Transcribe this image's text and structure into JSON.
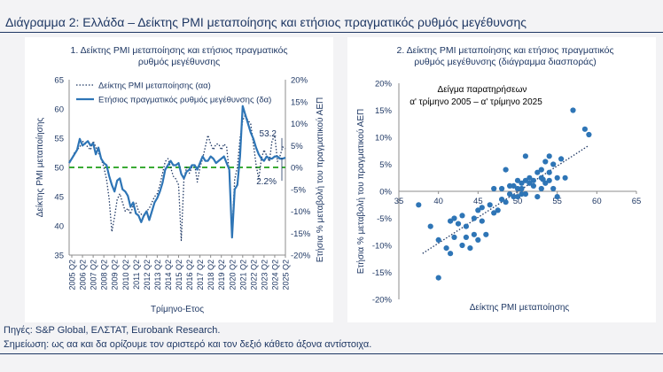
{
  "header": {
    "title": "Διάγραμμα 2: Ελλάδα – Δείκτης PMI μεταποίησης και ετήσιος πραγματικός ρυθμός μεγέθυνσης"
  },
  "footer": {
    "source": "Πηγές: S&P Global, ΕΛΣΤΑΤ, Eurobank Research.",
    "note": "Σημείωση: ως αα και δα ορίζουμε τον αριστερό και τον δεξιό κάθετο άξονα αντίστοιχα."
  },
  "colors": {
    "text": "#1f3864",
    "series_pmi": "#1f3864",
    "series_gdp": "#2e75b6",
    "threshold": "#3aaa35",
    "scatter": "#2e75b6"
  },
  "chart_data": [
    {
      "type": "line",
      "title_line1": "1. Δείκτης PMI μεταποίησης και ετήσιος πραγματικός",
      "title_line2": "ρυθμός μεγέθυνσης",
      "xlabel": "Τρίμηνο-Ετος",
      "ylabel_left": "Δείκτης PMI μεταποίησης",
      "ylabel_right": "Ετήσια % μεταβολή του πραγματικού ΑΕΠ",
      "ylim_left": [
        35,
        65
      ],
      "ylim_right": [
        -20,
        20
      ],
      "yticks_left": [
        "35",
        "40",
        "45",
        "50",
        "55",
        "60",
        "65"
      ],
      "yticks_right": [
        "-20%",
        "-15%",
        "-10%",
        "-5%",
        "0%",
        "5%",
        "10%",
        "15%",
        "20%"
      ],
      "x_ticks": [
        "2005 Q2",
        "2006 Q2",
        "2007 Q2",
        "2008 Q2",
        "2009 Q2",
        "2010 Q2",
        "2011 Q2",
        "2012 Q2",
        "2013 Q2",
        "2014 Q2",
        "2015 Q2",
        "2016 Q2",
        "2017 Q2",
        "2018 Q2",
        "2019 Q2",
        "2020 Q2",
        "2021 Q2",
        "2022 Q2",
        "2023 Q2",
        "2024 Q2",
        "2025 Q2"
      ],
      "x_start": 2005.0,
      "x_end": 2025.25,
      "threshold": 50,
      "legend_position": "top-left",
      "annotations": [
        {
          "text": "53.2",
          "x": 2025.25,
          "y_axis": "left",
          "y": 53.2
        },
        {
          "text": "2.2%",
          "x": 2025.25,
          "y_axis": "right",
          "y": 2.2
        }
      ],
      "series": [
        {
          "name": "Δείκτης PMI μεταποίησης (αα)",
          "axis": "left",
          "style": "dotted",
          "x": [
            2005.0,
            2005.25,
            2005.5,
            2005.75,
            2006.0,
            2006.25,
            2006.5,
            2006.75,
            2007.0,
            2007.25,
            2007.5,
            2007.75,
            2008.0,
            2008.25,
            2008.5,
            2008.75,
            2009.0,
            2009.25,
            2009.5,
            2009.75,
            2010.0,
            2010.25,
            2010.5,
            2010.75,
            2011.0,
            2011.25,
            2011.5,
            2011.75,
            2012.0,
            2012.25,
            2012.5,
            2012.75,
            2013.0,
            2013.25,
            2013.5,
            2013.75,
            2014.0,
            2014.25,
            2014.5,
            2014.75,
            2015.0,
            2015.25,
            2015.5,
            2015.75,
            2016.0,
            2016.25,
            2016.5,
            2016.75,
            2017.0,
            2017.25,
            2017.5,
            2017.75,
            2018.0,
            2018.25,
            2018.5,
            2018.75,
            2019.0,
            2019.25,
            2019.5,
            2019.75,
            2020.0,
            2020.25,
            2020.5,
            2020.75,
            2021.0,
            2021.25,
            2021.5,
            2021.75,
            2022.0,
            2022.25,
            2022.5,
            2022.75,
            2023.0,
            2023.25,
            2023.5,
            2023.75,
            2024.0,
            2024.25,
            2024.5,
            2024.75,
            2025.0,
            2025.25
          ],
          "values": [
            51.0,
            51.5,
            52.5,
            53.0,
            53.5,
            54.5,
            54.0,
            53.5,
            53.0,
            54.5,
            53.5,
            52.5,
            51.5,
            50.0,
            48.0,
            44.5,
            39.0,
            41.5,
            44.5,
            45.5,
            44.0,
            42.5,
            43.0,
            42.0,
            43.5,
            44.0,
            42.5,
            42.0,
            41.5,
            42.5,
            43.0,
            44.0,
            45.0,
            45.5,
            47.0,
            49.0,
            51.0,
            51.5,
            50.0,
            48.5,
            48.0,
            47.0,
            37.5,
            48.0,
            50.0,
            49.0,
            50.0,
            50.5,
            47.5,
            50.0,
            51.5,
            53.5,
            55.5,
            54.0,
            53.0,
            54.0,
            54.0,
            53.0,
            54.0,
            53.5,
            49.0,
            39.0,
            48.0,
            50.0,
            55.0,
            58.0,
            59.0,
            58.0,
            57.5,
            54.0,
            50.5,
            48.0,
            51.5,
            53.0,
            52.0,
            51.0,
            54.5,
            55.5,
            51.0,
            52.0,
            53.5,
            53.2
          ]
        },
        {
          "name": "Ετήσιος πραγματικός ρυθμός μεγέθυνσης (δα)",
          "axis": "right",
          "style": "solid",
          "x": [
            2005.0,
            2005.25,
            2005.5,
            2005.75,
            2006.0,
            2006.25,
            2006.5,
            2006.75,
            2007.0,
            2007.25,
            2007.5,
            2007.75,
            2008.0,
            2008.25,
            2008.5,
            2008.75,
            2009.0,
            2009.25,
            2009.5,
            2009.75,
            2010.0,
            2010.25,
            2010.5,
            2010.75,
            2011.0,
            2011.25,
            2011.5,
            2011.75,
            2012.0,
            2012.25,
            2012.5,
            2012.75,
            2013.0,
            2013.25,
            2013.5,
            2013.75,
            2014.0,
            2014.25,
            2014.5,
            2014.75,
            2015.0,
            2015.25,
            2015.5,
            2015.75,
            2016.0,
            2016.25,
            2016.5,
            2016.75,
            2017.0,
            2017.25,
            2017.5,
            2017.75,
            2018.0,
            2018.25,
            2018.5,
            2018.75,
            2019.0,
            2019.25,
            2019.5,
            2019.75,
            2020.0,
            2020.25,
            2020.5,
            2020.75,
            2021.0,
            2021.25,
            2021.5,
            2021.75,
            2022.0,
            2022.25,
            2022.5,
            2022.75,
            2023.0,
            2023.25,
            2023.5,
            2023.75,
            2024.0,
            2024.25,
            2024.5,
            2024.75,
            2025.0,
            2025.25
          ],
          "values": [
            1.0,
            2.0,
            3.0,
            4.0,
            6.5,
            5.0,
            5.5,
            6.0,
            5.0,
            5.5,
            3.0,
            4.5,
            2.0,
            1.0,
            0.5,
            -2.0,
            -4.0,
            -5.5,
            -3.0,
            -2.5,
            -5.0,
            -5.5,
            -6.5,
            -9.0,
            -8.0,
            -10.5,
            -11.0,
            -12.5,
            -11.0,
            -10.0,
            -12.0,
            -10.0,
            -8.0,
            -7.0,
            -5.5,
            -3.5,
            -0.5,
            0.5,
            1.5,
            0.5,
            0.5,
            1.0,
            -1.5,
            -2.5,
            -1.0,
            -0.5,
            0.5,
            0.5,
            -0.5,
            1.0,
            2.5,
            1.5,
            1.5,
            2.5,
            2.0,
            1.0,
            1.5,
            2.0,
            2.5,
            1.0,
            -0.5,
            -16.0,
            -5.0,
            -4.0,
            2.5,
            14.0,
            12.0,
            10.0,
            8.0,
            6.5,
            4.5,
            3.0,
            2.0,
            1.5,
            2.5,
            2.0,
            2.0,
            2.5,
            2.5,
            2.0,
            2.0,
            2.2
          ]
        }
      ]
    },
    {
      "type": "scatter",
      "title_line1": "2. Δείκτης PMI μεταποίησης και ετήσιος πραγματικός",
      "title_line2": "ρυθμός μεγέθυνσης (διάγραμμα διασποράς)",
      "inset_line1": "Δείγμα παρατηρήσεων",
      "inset_line2": "α' τρίμηνο 2005 – α' τρίμηνο 2025",
      "xlabel": "Δείκτης PMI μεταποίησης",
      "ylabel": "Ετήσια % μεταβολή του πραγματικού ΑΕΠ",
      "xlim": [
        35,
        65
      ],
      "ylim": [
        -20,
        20
      ],
      "xticks": [
        "35",
        "40",
        "45",
        "50",
        "55",
        "60",
        "65"
      ],
      "yticks": [
        "-20%",
        "-15%",
        "-10%",
        "-5%",
        "0%",
        "5%",
        "10%",
        "15%",
        "20%"
      ],
      "trendline": {
        "x": [
          38,
          59
        ],
        "y": [
          -11.5,
          8.5
        ]
      },
      "points": [
        [
          37.5,
          -2.5
        ],
        [
          39.0,
          -6.5
        ],
        [
          40.0,
          -16.0
        ],
        [
          40.0,
          -9.0
        ],
        [
          41.0,
          -10.5
        ],
        [
          41.5,
          -11.5
        ],
        [
          41.5,
          -5.5
        ],
        [
          42.0,
          -8.5
        ],
        [
          42.0,
          -5.0
        ],
        [
          42.5,
          -6.0
        ],
        [
          43.0,
          -10.0
        ],
        [
          43.0,
          -4.5
        ],
        [
          43.5,
          -8.5
        ],
        [
          43.5,
          -6.5
        ],
        [
          44.0,
          -10.5
        ],
        [
          44.5,
          -8.0
        ],
        [
          44.5,
          -5.0
        ],
        [
          45.0,
          -9.0
        ],
        [
          45.0,
          -3.5
        ],
        [
          45.5,
          -5.5
        ],
        [
          45.5,
          -3.0
        ],
        [
          46.0,
          -8.0
        ],
        [
          46.5,
          -2.5
        ],
        [
          47.0,
          -4.0
        ],
        [
          47.0,
          0.5
        ],
        [
          47.5,
          -3.5
        ],
        [
          48.0,
          -1.5
        ],
        [
          48.0,
          0.5
        ],
        [
          48.5,
          -2.0
        ],
        [
          48.5,
          4.0
        ],
        [
          49.0,
          1.0
        ],
        [
          49.0,
          -0.5
        ],
        [
          49.5,
          1.0
        ],
        [
          49.5,
          -1.0
        ],
        [
          50.0,
          0.5
        ],
        [
          50.0,
          2.0
        ],
        [
          50.0,
          -1.0
        ],
        [
          50.5,
          0.5
        ],
        [
          50.5,
          1.5
        ],
        [
          50.5,
          -0.5
        ],
        [
          51.0,
          2.0
        ],
        [
          51.0,
          -0.5
        ],
        [
          51.0,
          6.5
        ],
        [
          51.5,
          1.5
        ],
        [
          51.5,
          2.5
        ],
        [
          52.0,
          1.0
        ],
        [
          52.0,
          2.0
        ],
        [
          52.5,
          -1.0
        ],
        [
          52.5,
          3.5
        ],
        [
          53.0,
          0.5
        ],
        [
          53.0,
          2.5
        ],
        [
          53.0,
          4.0
        ],
        [
          53.2,
          2.2
        ],
        [
          53.5,
          5.5
        ],
        [
          53.5,
          1.5
        ],
        [
          54.0,
          2.0
        ],
        [
          54.0,
          6.5
        ],
        [
          54.0,
          3.5
        ],
        [
          54.5,
          5.0
        ],
        [
          54.5,
          0.5
        ],
        [
          55.0,
          2.5
        ],
        [
          55.0,
          -1.0
        ],
        [
          55.5,
          6.0
        ],
        [
          56.0,
          2.5
        ],
        [
          57.0,
          15.0
        ],
        [
          58.5,
          11.5
        ],
        [
          59.0,
          10.5
        ]
      ]
    }
  ]
}
